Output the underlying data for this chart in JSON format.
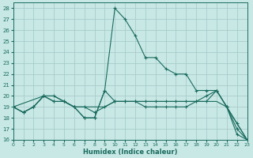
{
  "background_color": "#c8e8e5",
  "grid_color": "#a8ccca",
  "line_color": "#1a6b5e",
  "xlabel": "Humidex (Indice chaleur)",
  "xlim": [
    0,
    23
  ],
  "ylim": [
    16,
    28.5
  ],
  "yticks": [
    16,
    17,
    18,
    19,
    20,
    21,
    22,
    23,
    24,
    25,
    26,
    27,
    28
  ],
  "xticks": [
    0,
    1,
    2,
    3,
    4,
    5,
    6,
    7,
    8,
    9,
    10,
    11,
    12,
    13,
    14,
    15,
    16,
    17,
    18,
    19,
    20,
    21,
    22,
    23
  ],
  "curve1_x": [
    0,
    1,
    2,
    3,
    4,
    5,
    6,
    7,
    8,
    9,
    10,
    11,
    12,
    13,
    14,
    15,
    16,
    17,
    18,
    19,
    20,
    21,
    22,
    23
  ],
  "curve1_y": [
    19,
    18.5,
    19,
    20,
    20,
    19.5,
    19,
    18,
    18,
    20.5,
    28,
    27,
    25.5,
    23.5,
    23.5,
    22.5,
    22,
    22,
    20.5,
    20.5,
    20.5,
    19,
    16.5,
    16
  ],
  "curve2_x": [
    0,
    1,
    2,
    3,
    4,
    5,
    6,
    7,
    8,
    9,
    10,
    11,
    12,
    13,
    14,
    15,
    16,
    17,
    18,
    19,
    20,
    21,
    22,
    23
  ],
  "curve2_y": [
    19,
    18.5,
    19,
    20,
    19.5,
    19.5,
    19,
    19,
    18.5,
    19,
    19.5,
    19.5,
    19.5,
    19.5,
    19.5,
    19.5,
    19.5,
    19.5,
    19.5,
    20,
    20.5,
    19,
    17.5,
    16
  ],
  "curve3_x": [
    0,
    3,
    4,
    5,
    6,
    7,
    8,
    9,
    10,
    11,
    12,
    13,
    14,
    15,
    16,
    17,
    18,
    19,
    20,
    21,
    22,
    23
  ],
  "curve3_y": [
    19,
    20,
    20,
    19.5,
    19,
    19,
    19,
    19,
    19.5,
    19.5,
    19.5,
    19.5,
    19.5,
    19.5,
    19.5,
    19.5,
    19.5,
    19.5,
    19.5,
    19,
    17.5,
    16
  ],
  "curve4_x": [
    0,
    1,
    2,
    3,
    4,
    5,
    6,
    7,
    8,
    9,
    10,
    11,
    12,
    13,
    14,
    15,
    16,
    17,
    18,
    19,
    20,
    21,
    22,
    23
  ],
  "curve4_y": [
    19,
    18.5,
    19,
    20,
    19.5,
    19.5,
    19,
    18,
    18,
    20.5,
    19.5,
    19.5,
    19.5,
    19,
    19,
    19,
    19,
    19,
    19.5,
    19.5,
    20.5,
    19,
    17,
    16
  ]
}
